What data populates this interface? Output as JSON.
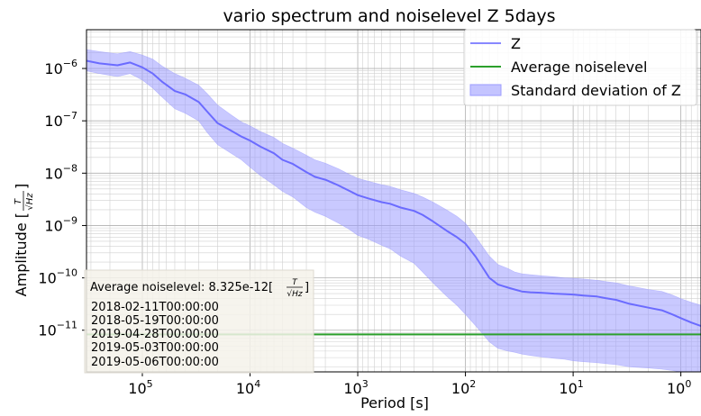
{
  "chart_data": {
    "type": "line",
    "title": "vario spectrum and noiselevel Z 5days",
    "xlabel": "Period [s]",
    "ylabel": "Amplitude [T/√Hz]",
    "x_scale": "log",
    "y_scale": "log",
    "x_inverted": true,
    "xlim": [
      330000,
      0.65
    ],
    "ylim": [
      1.6e-12,
      5.5e-06
    ],
    "grid": true,
    "grid_minor": true,
    "legend_placement": "top-right",
    "x_ticks": [
      {
        "value": 100000,
        "base": "10",
        "exp": "5"
      },
      {
        "value": 10000,
        "base": "10",
        "exp": "4"
      },
      {
        "value": 1000,
        "base": "10",
        "exp": "3"
      },
      {
        "value": 100,
        "base": "10",
        "exp": "2"
      },
      {
        "value": 10,
        "base": "10",
        "exp": "1"
      },
      {
        "value": 1,
        "base": "10",
        "exp": "0"
      }
    ],
    "y_ticks": [
      {
        "value": 1e-06,
        "base": "10",
        "exp": "−6"
      },
      {
        "value": 1e-07,
        "base": "10",
        "exp": "−7"
      },
      {
        "value": 1e-08,
        "base": "10",
        "exp": "−8"
      },
      {
        "value": 1e-09,
        "base": "10",
        "exp": "−9"
      },
      {
        "value": 1e-10,
        "base": "10",
        "exp": "−10"
      },
      {
        "value": 1e-11,
        "base": "10",
        "exp": "−11"
      }
    ],
    "series": [
      {
        "name": "Z",
        "color": "#6b6bff",
        "x": [
          330000,
          250000,
          170000,
          130000,
          100000,
          80000,
          65000,
          50000,
          40000,
          30000,
          25000,
          20000,
          15000,
          12000,
          10000,
          8000,
          6000,
          5000,
          4000,
          3000,
          2500,
          2000,
          1500,
          1200,
          1000,
          800,
          600,
          500,
          400,
          300,
          250,
          200,
          150,
          120,
          100,
          80,
          60,
          50,
          40,
          35,
          30,
          25,
          20,
          15,
          12,
          10,
          8,
          6,
          5,
          4,
          3,
          2,
          1.5,
          1.2,
          1.0,
          0.8,
          0.65
        ],
        "y": [
          1.4e-06,
          1.25e-06,
          1.15e-06,
          1.3e-06,
          1.05e-06,
          8e-07,
          5.5e-07,
          3.7e-07,
          3.2e-07,
          2.3e-07,
          1.5e-07,
          9e-08,
          6.5e-08,
          5e-08,
          4.2e-08,
          3.2e-08,
          2.4e-08,
          1.8e-08,
          1.5e-08,
          1.05e-08,
          8.5e-09,
          7.5e-09,
          5.8e-09,
          4.6e-09,
          3.8e-09,
          3.3e-09,
          2.8e-09,
          2.6e-09,
          2.2e-09,
          1.9e-09,
          1.6e-09,
          1.2e-09,
          8e-10,
          6e-10,
          4.5e-10,
          2.5e-10,
          1e-10,
          7.5e-11,
          6.5e-11,
          6e-11,
          5.5e-11,
          5.3e-11,
          5.2e-11,
          5e-11,
          4.9e-11,
          4.8e-11,
          4.6e-11,
          4.4e-11,
          4.1e-11,
          3.8e-11,
          3.2e-11,
          2.7e-11,
          2.4e-11,
          2e-11,
          1.7e-11,
          1.4e-11,
          1.2e-11
        ]
      },
      {
        "name": "Average noiselevel",
        "color": "#2ca02c",
        "x": [
          330000,
          0.65
        ],
        "y": [
          8.325e-12,
          8.325e-12
        ]
      },
      {
        "name": "Standard deviation of Z",
        "type": "band",
        "color": "#9d9dff",
        "x": [
          330000,
          250000,
          170000,
          130000,
          100000,
          80000,
          65000,
          50000,
          40000,
          30000,
          25000,
          20000,
          15000,
          12000,
          10000,
          8000,
          6000,
          5000,
          4000,
          3000,
          2500,
          2000,
          1500,
          1200,
          1000,
          800,
          600,
          500,
          400,
          300,
          250,
          200,
          150,
          120,
          100,
          80,
          60,
          50,
          40,
          35,
          30,
          25,
          20,
          15,
          12,
          10,
          8,
          6,
          5,
          4,
          3,
          2,
          1.5,
          1.2,
          1.0,
          0.8,
          0.65
        ],
        "upper": [
          2.3e-06,
          2.1e-06,
          1.9e-06,
          2.1e-06,
          1.8e-06,
          1.5e-06,
          1.1e-06,
          8e-07,
          6.5e-07,
          4.8e-07,
          3.3e-07,
          2e-07,
          1.3e-07,
          9.5e-08,
          8e-08,
          6.2e-08,
          4.8e-08,
          3.7e-08,
          3e-08,
          2.2e-08,
          1.8e-08,
          1.55e-08,
          1.2e-08,
          9.5e-09,
          8e-09,
          7e-09,
          6e-09,
          5.6e-09,
          4.8e-09,
          4.1e-09,
          3.5e-09,
          2.8e-09,
          2e-09,
          1.5e-09,
          1.1e-09,
          6e-10,
          2.6e-10,
          1.8e-10,
          1.5e-10,
          1.3e-10,
          1.2e-10,
          1.15e-10,
          1.1e-10,
          1.05e-10,
          1e-10,
          9.8e-11,
          9.5e-11,
          9e-11,
          8.5e-11,
          8e-11,
          7e-11,
          6e-11,
          5.5e-11,
          4.7e-11,
          4e-11,
          3.4e-11,
          3e-11
        ],
        "lower": [
          9e-07,
          8e-07,
          7e-07,
          8e-07,
          6e-07,
          4.2e-07,
          2.8e-07,
          1.7e-07,
          1.4e-07,
          1e-07,
          6e-08,
          3.5e-08,
          2.4e-08,
          1.8e-08,
          1.3e-08,
          9e-09,
          6e-09,
          4.5e-09,
          3.5e-09,
          2.2e-09,
          1.8e-09,
          1.5e-09,
          1.1e-09,
          8.5e-10,
          6.5e-10,
          5.5e-10,
          4.2e-10,
          3.6e-10,
          2.6e-10,
          1.9e-10,
          1.3e-10,
          8e-11,
          4.5e-11,
          3e-11,
          2e-11,
          1.2e-11,
          6e-12,
          4.5e-12,
          4e-12,
          3.8e-12,
          3.5e-12,
          3.3e-12,
          3.1e-12,
          2.9e-12,
          2.8e-12,
          2.6e-12,
          2.5e-12,
          2.4e-12,
          2.3e-12,
          2.2e-12,
          2e-12,
          1.9e-12,
          1.8e-12,
          1.7e-12,
          1.6e-12,
          1.6e-12,
          1.6e-12
        ]
      }
    ],
    "annotation": {
      "noise_prefix": "Average noiselevel: 8.325e-12[",
      "noise_unit_num": "T",
      "noise_unit_den": "√Hz",
      "noise_suffix": "]",
      "dates": [
        "2018-02-11T00:00:00",
        "2018-05-19T00:00:00",
        "2019-04-28T00:00:00",
        "2019-05-03T00:00:00",
        "2019-05-06T00:00:00"
      ]
    },
    "ylabel_parts": {
      "prefix": "Amplitude [",
      "num": "T",
      "den": "√Hz",
      "suffix": "]"
    }
  }
}
